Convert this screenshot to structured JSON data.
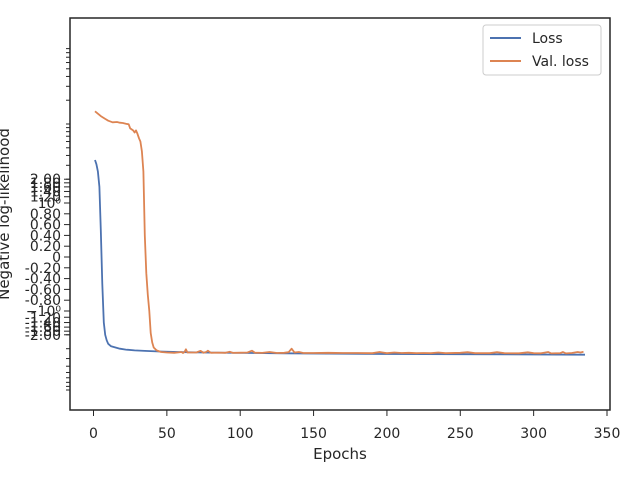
{
  "chart_data": {
    "type": "line",
    "xlabel": "Epochs",
    "ylabel": "Negative log-likelihood",
    "xlim": [
      -15,
      350
    ],
    "x_ticks": [
      "0",
      "50",
      "100",
      "150",
      "200",
      "250",
      "300",
      "350"
    ],
    "y_scale": "symlog",
    "y_ticks_visible": [
      "2.00",
      "1.80",
      "1.60",
      "1.40",
      "1.20",
      "10⁰",
      "0.80",
      "0.60",
      "0.40",
      "0.20",
      "0",
      "-0.20",
      "-0.40",
      "-0.60",
      "-0.80",
      "−10⁰",
      "-1.20",
      "-1.40",
      "-1.60",
      "-1.80",
      "-2.00"
    ],
    "legend_position": "upper right",
    "series": [
      {
        "name": "Loss",
        "color": "#4c72b0",
        "points": [
          [
            1,
            3.5
          ],
          [
            2,
            3.1
          ],
          [
            3,
            2.5
          ],
          [
            4,
            1.6
          ],
          [
            5,
            0.5
          ],
          [
            6,
            -0.5
          ],
          [
            7,
            -1.4
          ],
          [
            8,
            -2.0
          ],
          [
            9,
            -2.35
          ],
          [
            10,
            -2.6
          ],
          [
            12,
            -2.8
          ],
          [
            15,
            -2.9
          ],
          [
            18,
            -3.0
          ],
          [
            22,
            -3.08
          ],
          [
            28,
            -3.15
          ],
          [
            35,
            -3.2
          ],
          [
            45,
            -3.26
          ],
          [
            60,
            -3.31
          ],
          [
            80,
            -3.36
          ],
          [
            100,
            -3.39
          ],
          [
            130,
            -3.43
          ],
          [
            160,
            -3.46
          ],
          [
            200,
            -3.5
          ],
          [
            250,
            -3.52
          ],
          [
            300,
            -3.55
          ],
          [
            335,
            -3.57
          ]
        ]
      },
      {
        "name": "Val. loss",
        "color": "#dd8452",
        "points": [
          [
            1,
            14.5
          ],
          [
            3,
            13.5
          ],
          [
            5,
            12.6
          ],
          [
            8,
            11.6
          ],
          [
            10,
            11.0
          ],
          [
            13,
            10.5
          ],
          [
            16,
            10.6
          ],
          [
            18,
            10.4
          ],
          [
            20,
            10.3
          ],
          [
            22,
            10.1
          ],
          [
            24,
            9.9
          ],
          [
            25,
            8.8
          ],
          [
            27,
            8.3
          ],
          [
            28,
            7.8
          ],
          [
            29,
            8.3
          ],
          [
            30,
            7.5
          ],
          [
            31,
            6.6
          ],
          [
            32,
            6.0
          ],
          [
            33,
            4.5
          ],
          [
            34,
            2.5
          ],
          [
            35,
            0.4
          ],
          [
            36,
            -0.3
          ],
          [
            37,
            -0.7
          ],
          [
            38,
            -1.0
          ],
          [
            39,
            -1.9
          ],
          [
            40,
            -2.5
          ],
          [
            41,
            -2.9
          ],
          [
            43,
            -3.15
          ],
          [
            46,
            -3.3
          ],
          [
            50,
            -3.35
          ],
          [
            55,
            -3.38
          ],
          [
            58,
            -3.34
          ],
          [
            60,
            -3.3
          ],
          [
            61,
            -3.4
          ],
          [
            62,
            -3.3
          ],
          [
            63,
            -3.05
          ],
          [
            64,
            -3.35
          ],
          [
            70,
            -3.35
          ],
          [
            73,
            -3.2
          ],
          [
            75,
            -3.38
          ],
          [
            77,
            -3.28
          ],
          [
            78,
            -3.18
          ],
          [
            80,
            -3.38
          ],
          [
            85,
            -3.36
          ],
          [
            90,
            -3.38
          ],
          [
            93,
            -3.28
          ],
          [
            95,
            -3.39
          ],
          [
            100,
            -3.37
          ],
          [
            105,
            -3.35
          ],
          [
            108,
            -3.18
          ],
          [
            110,
            -3.37
          ],
          [
            115,
            -3.39
          ],
          [
            120,
            -3.3
          ],
          [
            125,
            -3.4
          ],
          [
            130,
            -3.38
          ],
          [
            133,
            -3.32
          ],
          [
            135,
            -3.0
          ],
          [
            137,
            -3.35
          ],
          [
            140,
            -3.3
          ],
          [
            143,
            -3.4
          ],
          [
            150,
            -3.4
          ],
          [
            160,
            -3.38
          ],
          [
            170,
            -3.4
          ],
          [
            180,
            -3.4
          ],
          [
            190,
            -3.42
          ],
          [
            195,
            -3.3
          ],
          [
            200,
            -3.42
          ],
          [
            205,
            -3.35
          ],
          [
            210,
            -3.4
          ],
          [
            215,
            -3.38
          ],
          [
            220,
            -3.42
          ],
          [
            225,
            -3.4
          ],
          [
            230,
            -3.42
          ],
          [
            235,
            -3.35
          ],
          [
            240,
            -3.42
          ],
          [
            250,
            -3.38
          ],
          [
            255,
            -3.32
          ],
          [
            260,
            -3.42
          ],
          [
            270,
            -3.42
          ],
          [
            275,
            -3.32
          ],
          [
            280,
            -3.42
          ],
          [
            290,
            -3.43
          ],
          [
            296,
            -3.33
          ],
          [
            300,
            -3.42
          ],
          [
            305,
            -3.43
          ],
          [
            310,
            -3.3
          ],
          [
            312,
            -3.44
          ],
          [
            318,
            -3.42
          ],
          [
            320,
            -3.3
          ],
          [
            322,
            -3.44
          ],
          [
            326,
            -3.4
          ],
          [
            330,
            -3.3
          ],
          [
            332,
            -3.35
          ],
          [
            334,
            -3.28
          ]
        ]
      }
    ]
  }
}
